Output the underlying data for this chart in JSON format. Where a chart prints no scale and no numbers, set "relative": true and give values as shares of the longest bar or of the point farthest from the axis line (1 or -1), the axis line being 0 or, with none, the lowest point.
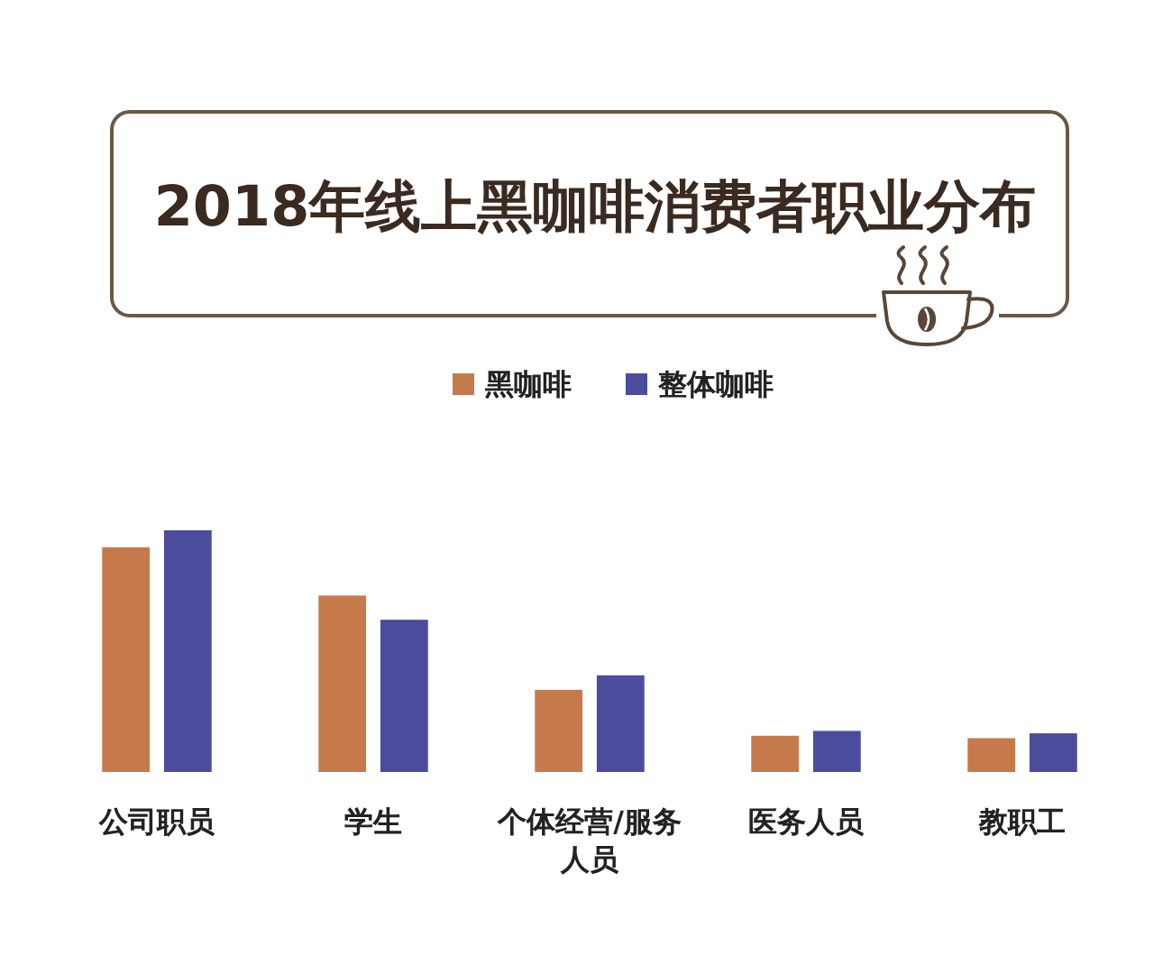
{
  "chart_data": {
    "type": "bar",
    "title": "2018年线上黑咖啡消费者职业分布",
    "categories": [
      "公司职员",
      "学生",
      "个体经营/服务人员",
      "医务人员",
      "教职工"
    ],
    "series": [
      {
        "name": "黑咖啡",
        "color": "#c67a4c",
        "values": [
          0.93,
          0.73,
          0.34,
          0.15,
          0.14
        ]
      },
      {
        "name": "整体咖啡",
        "color": "#4b4c9c",
        "values": [
          1,
          0.63,
          0.4,
          0.17,
          0.16
        ]
      }
    ],
    "relative": true,
    "legend": "top"
  }
}
